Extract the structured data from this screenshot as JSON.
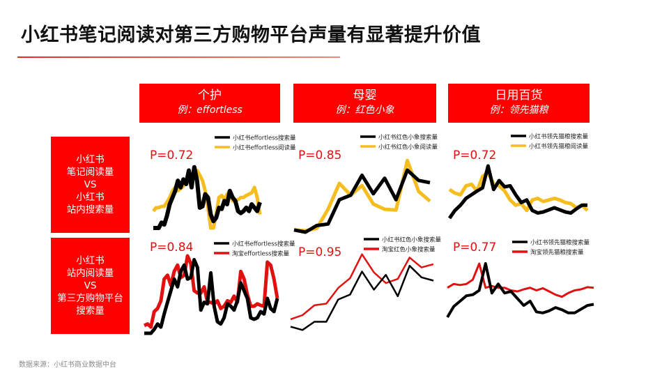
{
  "title": "小红书笔记阅读对第三方购物平台声量有显著提升价值",
  "categories": [
    {
      "name": "个护",
      "example": "例：effortless"
    },
    {
      "name": "母婴",
      "example": "例：红色小象"
    },
    {
      "name": "日用百货",
      "example": "例：领先猫粮"
    }
  ],
  "row_labels": [
    "小红书\n笔记阅读量\nVS\n小红书\n站内搜索量",
    "小红书\n站内阅读量\nVS\n第三方购物平台\n搜索量"
  ],
  "source": "数据来源：小红书商业数据中台",
  "colors": {
    "brand_red": "#fe0000",
    "black": "#000000",
    "yellow": "#f5bd1f",
    "red_series": "#e31010"
  },
  "chart_data": [
    {
      "type": "line",
      "annotation": "P=0.72",
      "axes": "hidden",
      "grid": false,
      "legend": "top-right",
      "series": [
        {
          "name": "小红书effortless搜索量",
          "color": "#000000",
          "values": [
            0,
            0,
            0,
            8,
            5,
            18,
            35,
            45,
            55,
            70,
            60,
            72,
            65,
            85,
            60,
            90,
            70,
            30,
            32,
            50,
            45,
            20,
            10,
            15,
            30,
            28,
            40,
            35,
            55,
            45,
            40,
            25,
            22,
            25,
            30,
            25,
            35,
            30,
            25,
            38
          ]
        },
        {
          "name": "小红书effortless阅读量",
          "color": "#f5bd1f",
          "values": [
            25,
            30,
            30,
            32,
            32,
            38,
            45,
            55,
            60,
            55,
            58,
            62,
            70,
            68,
            72,
            80,
            85,
            78,
            70,
            55,
            30,
            0,
            0,
            20,
            45,
            48,
            42,
            50,
            55,
            40,
            40,
            42,
            45,
            45,
            48,
            50,
            52,
            60,
            45,
            20
          ]
        }
      ]
    },
    {
      "type": "line",
      "annotation": "P=0.85",
      "axes": "hidden",
      "grid": false,
      "legend": "top-right",
      "series": [
        {
          "name": "小红书红色小象搜索量",
          "color": "#000000",
          "values": [
            3,
            0,
            9,
            11,
            44,
            50,
            77,
            52,
            73,
            44,
            84,
            70,
            67
          ]
        },
        {
          "name": "小红书红色小象阅读量",
          "color": "#f5bd1f",
          "values": [
            3,
            2,
            5,
            31,
            66,
            50,
            63,
            38,
            31,
            30,
            97,
            55,
            42
          ]
        }
      ]
    },
    {
      "type": "line",
      "annotation": "P=0.72",
      "axes": "hidden",
      "grid": false,
      "legend": "top-right",
      "series": [
        {
          "name": "小红书领先猫粮搜索量",
          "color": "#000000",
          "values": [
            0,
            15,
            25,
            38,
            45,
            52,
            58,
            100,
            55,
            72,
            60,
            62,
            45,
            30,
            35,
            15,
            10,
            12,
            16,
            20,
            16,
            12,
            10,
            18,
            25,
            25
          ]
        },
        {
          "name": "小红书领先猫粮阅读量",
          "color": "#f5bd1f",
          "values": [
            55,
            48,
            45,
            62,
            65,
            52,
            80,
            88,
            65,
            62,
            52,
            35,
            25,
            28,
            15,
            35,
            38,
            32,
            35,
            38,
            35,
            30,
            28,
            20,
            25,
            15
          ]
        }
      ]
    },
    {
      "type": "line",
      "annotation": "P=0.84",
      "axes": "hidden",
      "grid": false,
      "legend": "top-right",
      "series": [
        {
          "name": "小红书effortless搜索量",
          "color": "#000000",
          "values": [
            0,
            0,
            0,
            5,
            12,
            8,
            25,
            40,
            55,
            70,
            60,
            80,
            88,
            70,
            72,
            95,
            85,
            30,
            40,
            38,
            78,
            35,
            15,
            12,
            20,
            38,
            35,
            30,
            42,
            65,
            55,
            45,
            20,
            18,
            20,
            28,
            25,
            45,
            32,
            28,
            45
          ]
        },
        {
          "name": "淘宝effortless搜索量",
          "color": "#e31010",
          "values": [
            10,
            12,
            8,
            28,
            32,
            42,
            70,
            75,
            62,
            80,
            88,
            72,
            75,
            100,
            90,
            55,
            52,
            52,
            60,
            40,
            40,
            38,
            42,
            32,
            35,
            42,
            40,
            48,
            40,
            80,
            70,
            50,
            35,
            35,
            38,
            36,
            35,
            92,
            88,
            70,
            45
          ]
        }
      ]
    },
    {
      "type": "line",
      "annotation": "P=0.95",
      "axes": "hidden",
      "grid": false,
      "legend": "top-right",
      "series": [
        {
          "name": "小红书红色小象搜索量",
          "color": "#000000",
          "values": [
            8,
            4,
            14,
            14,
            41,
            47,
            75,
            53,
            71,
            45,
            82,
            68,
            64
          ]
        },
        {
          "name": "淘宝红色小象搜索量",
          "color": "#e31010",
          "values": [
            17,
            22,
            34,
            36,
            55,
            67,
            96,
            74,
            61,
            66,
            92,
            80,
            84
          ]
        }
      ]
    },
    {
      "type": "line",
      "annotation": "P=0.77",
      "axes": "hidden",
      "grid": false,
      "legend": "top-right",
      "series": [
        {
          "name": "小红书领先猫粮搜索量",
          "color": "#000000",
          "values": [
            0,
            20,
            30,
            40,
            42,
            50,
            100,
            45,
            62,
            45,
            48,
            35,
            22,
            30,
            10,
            8,
            12,
            18,
            14,
            8,
            8,
            15,
            22,
            24
          ]
        },
        {
          "name": "淘宝领先猫粮搜索量",
          "color": "#e31010",
          "values": [
            55,
            62,
            60,
            62,
            70,
            100,
            55,
            58,
            55,
            55,
            50,
            48,
            52,
            55,
            50,
            54,
            48,
            42,
            38,
            45,
            50,
            52,
            56,
            55
          ]
        }
      ]
    }
  ]
}
